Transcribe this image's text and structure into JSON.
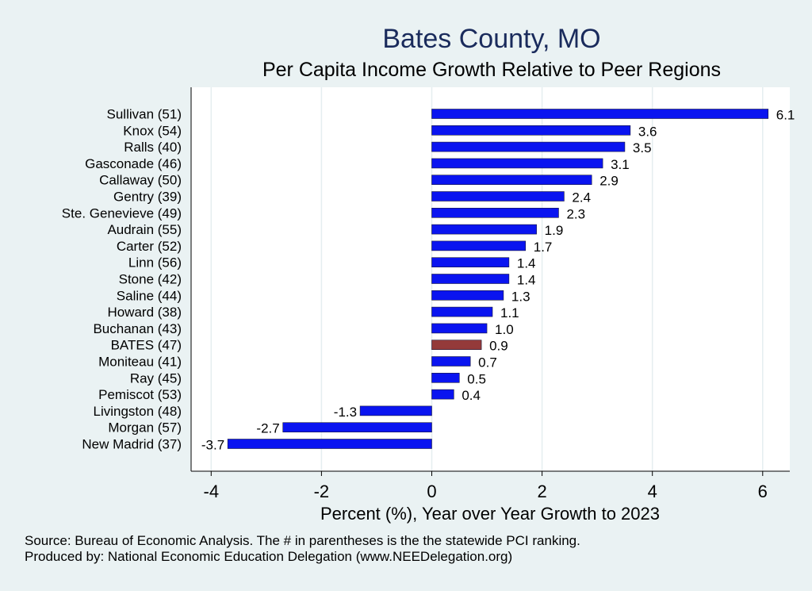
{
  "chart_data": {
    "type": "bar",
    "orientation": "horizontal",
    "title": "Bates County, MO",
    "subtitle": "Per Capita Income Growth Relative to Peer Regions",
    "xlabel": "Percent (%), Year over Year Growth to 2023",
    "ylabel": "",
    "xlim": [
      -4.4,
      6.5
    ],
    "xticks": [
      -4,
      -2,
      0,
      2,
      4,
      6
    ],
    "grid": true,
    "categories": [
      "Sullivan (51)",
      "Knox (54)",
      "Ralls (40)",
      "Gasconade (46)",
      "Callaway (50)",
      "Gentry (39)",
      "Ste. Genevieve (49)",
      "Audrain (55)",
      "Carter (52)",
      "Linn (56)",
      "Stone (42)",
      "Saline (44)",
      "Howard (38)",
      "Buchanan (43)",
      "BATES (47)",
      "Moniteau (41)",
      "Ray (45)",
      "Pemiscot (53)",
      "Livingston (48)",
      "Morgan (57)",
      "New Madrid (37)"
    ],
    "values": [
      6.1,
      3.6,
      3.5,
      3.1,
      2.9,
      2.4,
      2.3,
      1.9,
      1.7,
      1.4,
      1.4,
      1.3,
      1.1,
      1.0,
      0.9,
      0.7,
      0.5,
      0.4,
      -1.3,
      -2.7,
      -3.7
    ],
    "value_labels": [
      "6.1",
      "3.6",
      "3.5",
      "3.1",
      "2.9",
      "2.4",
      "2.3",
      "1.9",
      "1.7",
      "1.4",
      "1.4",
      "1.3",
      "1.1",
      "1.0",
      "0.9",
      "0.7",
      "0.5",
      "0.4",
      "-1.3",
      "-2.7",
      "-3.7"
    ],
    "highlight_category": "BATES (47)",
    "colors": {
      "bar": "#0a14f0",
      "highlight": "#943a3a",
      "background": "#eaf2f3",
      "plot_background": "#ffffff",
      "grid": "#e5eef0"
    }
  },
  "footer": {
    "source": "Source: Bureau of Economic Analysis. The # in parentheses is the the statewide PCI ranking.",
    "produced_by": "Produced by: National Economic Education Delegation (www.NEEDelegation.org)"
  }
}
